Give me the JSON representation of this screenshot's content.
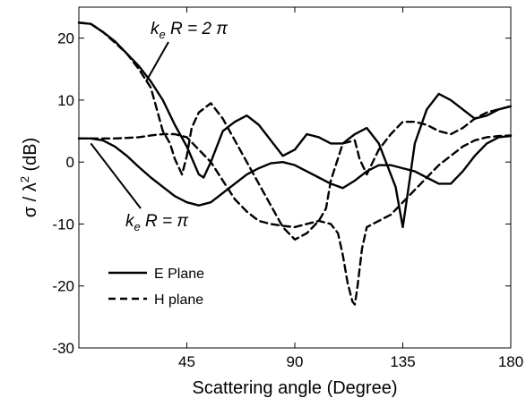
{
  "chart_data": {
    "type": "line",
    "title": "",
    "xlabel": "Scattering angle (Degree)",
    "ylabel_parts": [
      "σ / λ",
      "2",
      " (dB)"
    ],
    "xlim": [
      0,
      180
    ],
    "ylim": [
      -30,
      25
    ],
    "xticks": [
      45,
      90,
      135,
      180
    ],
    "yticks": [
      -30,
      -20,
      -10,
      0,
      10,
      20
    ],
    "grid": false,
    "legend_position": "lower-left",
    "legend": [
      {
        "label": "E Plane",
        "style": "solid"
      },
      {
        "label": "H plane",
        "style": "dashed"
      }
    ],
    "annotations": [
      {
        "parts": [
          "k",
          "e",
          " R = 2 π"
        ],
        "target_curve": "kR=2pi",
        "target": [
          28,
          13
        ]
      },
      {
        "parts": [
          "k",
          "e",
          " R = π"
        ],
        "target_curve": "kR=pi",
        "target": [
          5,
          3
        ]
      }
    ],
    "series": [
      {
        "curve": "kR=2pi",
        "plane": "E",
        "style": "solid",
        "x": [
          0,
          5,
          10,
          15,
          20,
          25,
          30,
          35,
          40,
          45,
          50,
          52,
          55,
          60,
          65,
          70,
          75,
          80,
          85,
          90,
          95,
          100,
          105,
          110,
          115,
          120,
          125,
          130,
          132,
          135,
          138,
          140,
          145,
          150,
          155,
          160,
          165,
          170,
          175,
          180
        ],
        "y": [
          22.5,
          22.3,
          21.0,
          19.5,
          17.5,
          15.5,
          13.0,
          10.0,
          6.0,
          2.5,
          -2.0,
          -2.5,
          0,
          5.0,
          6.5,
          7.5,
          6.0,
          3.5,
          1.0,
          2.0,
          4.5,
          4.0,
          3.0,
          3.0,
          4.5,
          5.5,
          3.0,
          -2.0,
          -4.0,
          -10.5,
          -2.5,
          3.0,
          8.5,
          11.0,
          10.0,
          8.5,
          7.0,
          7.5,
          8.5,
          9.0
        ]
      },
      {
        "curve": "kR=2pi",
        "plane": "H",
        "style": "dashed",
        "x": [
          0,
          5,
          10,
          15,
          20,
          25,
          30,
          35,
          38,
          40,
          43,
          45,
          47,
          50,
          55,
          60,
          65,
          70,
          75,
          80,
          85,
          90,
          95,
          100,
          103,
          105,
          110,
          115,
          117,
          120,
          125,
          130,
          135,
          140,
          145,
          150,
          155,
          160,
          165,
          170,
          175,
          180
        ],
        "y": [
          22.5,
          22.3,
          21.0,
          19.3,
          17.5,
          15.0,
          12.0,
          5.0,
          3.0,
          0.5,
          -2.0,
          1.0,
          5.5,
          8.0,
          9.5,
          7.0,
          3.5,
          0.0,
          -3.5,
          -7.0,
          -10.5,
          -12.5,
          -11.5,
          -9.5,
          -7.5,
          -3.0,
          3.0,
          3.5,
          0.5,
          -2.0,
          2.0,
          4.5,
          6.5,
          6.5,
          6.0,
          5.0,
          4.5,
          5.5,
          7.0,
          8.0,
          8.5,
          9.0
        ]
      },
      {
        "curve": "kR=pi",
        "plane": "E",
        "style": "solid",
        "x": [
          0,
          5,
          10,
          15,
          20,
          25,
          30,
          35,
          40,
          45,
          50,
          55,
          60,
          65,
          70,
          75,
          80,
          85,
          90,
          95,
          100,
          105,
          110,
          115,
          120,
          125,
          130,
          135,
          140,
          145,
          150,
          155,
          160,
          165,
          170,
          175,
          180
        ],
        "y": [
          3.8,
          3.8,
          3.5,
          2.5,
          1.0,
          -0.8,
          -2.5,
          -4.0,
          -5.5,
          -6.5,
          -7.0,
          -6.5,
          -5.0,
          -3.5,
          -2.0,
          -1.0,
          -0.2,
          0,
          -0.5,
          -1.5,
          -2.5,
          -3.5,
          -4.2,
          -3.0,
          -1.5,
          -0.5,
          -0.5,
          -1.0,
          -1.5,
          -2.5,
          -3.5,
          -3.5,
          -1.5,
          1.0,
          3.0,
          4.0,
          4.2
        ]
      },
      {
        "curve": "kR=pi",
        "plane": "H",
        "style": "dashed",
        "x": [
          0,
          5,
          10,
          15,
          20,
          25,
          30,
          35,
          40,
          45,
          50,
          55,
          60,
          65,
          70,
          75,
          80,
          85,
          90,
          95,
          100,
          105,
          108,
          110,
          112,
          114,
          115,
          116,
          118,
          120,
          125,
          130,
          135,
          140,
          145,
          150,
          155,
          160,
          165,
          170,
          175,
          180
        ],
        "y": [
          3.8,
          3.8,
          3.8,
          3.8,
          3.9,
          4.0,
          4.3,
          4.5,
          4.5,
          4.0,
          2.0,
          0,
          -3.0,
          -6.0,
          -8.0,
          -9.5,
          -10.0,
          -10.3,
          -10.5,
          -10.0,
          -9.5,
          -10.0,
          -11.5,
          -15.0,
          -19.5,
          -22.5,
          -23.0,
          -20.5,
          -14.0,
          -10.5,
          -9.5,
          -8.5,
          -6.5,
          -4.5,
          -2.5,
          -0.5,
          1.0,
          2.5,
          3.5,
          4.0,
          4.2,
          4.3
        ]
      }
    ]
  }
}
